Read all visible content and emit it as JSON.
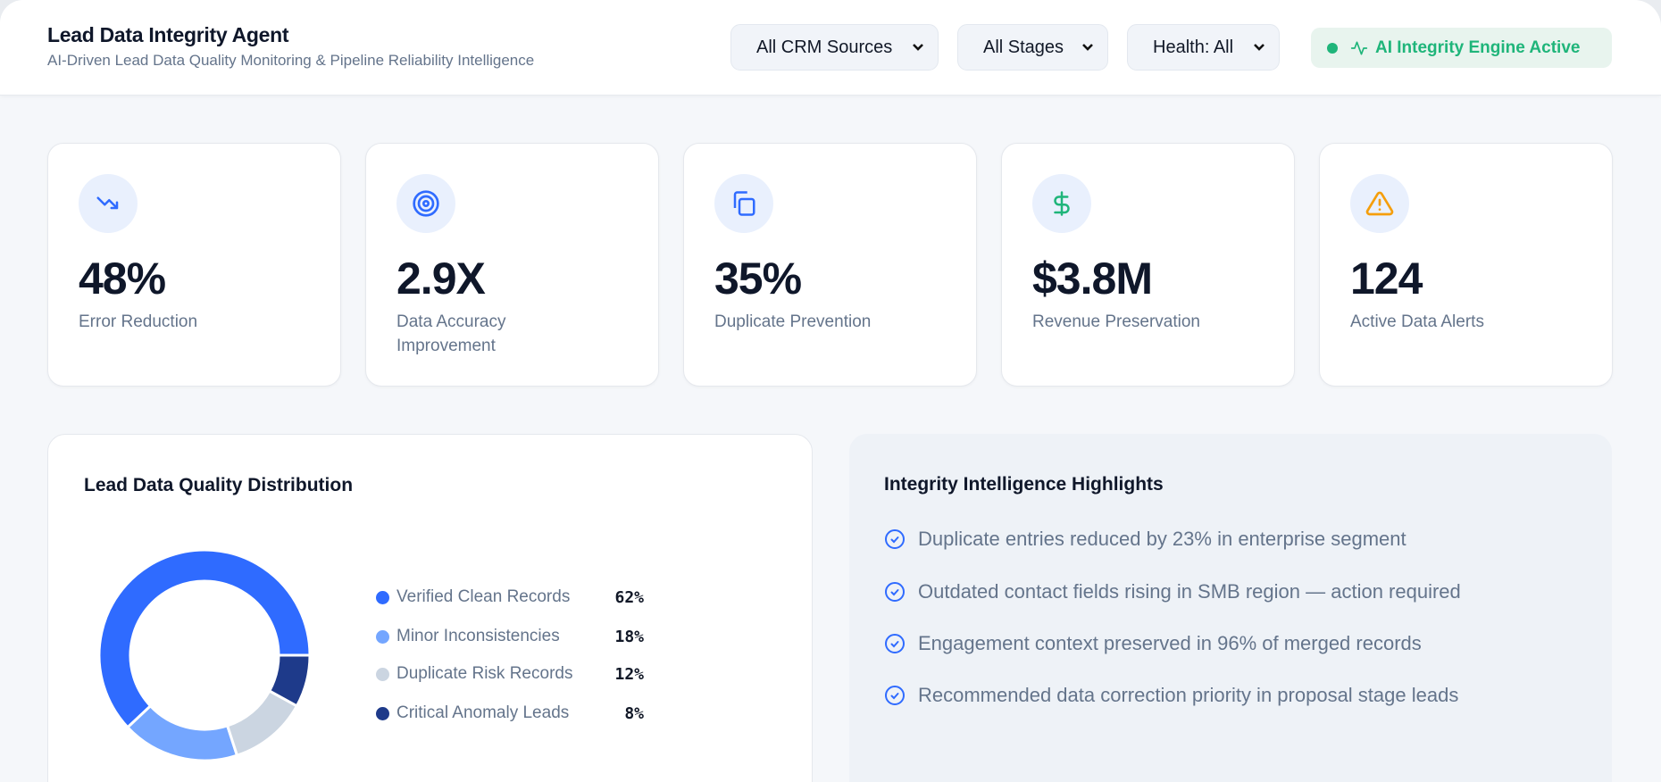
{
  "header": {
    "title": "Lead Data Integrity Agent",
    "subtitle": "AI-Driven Lead Data Quality Monitoring & Pipeline Reliability Intelligence",
    "filters": [
      {
        "value": "All CRM Sources"
      },
      {
        "value": "All Stages"
      },
      {
        "value": "Health: All"
      }
    ],
    "status_badge": {
      "label": "AI Integrity Engine Active",
      "color": "#1fb57a",
      "icon": "activity-icon"
    }
  },
  "kpis": [
    {
      "value": "48%",
      "label": "Error Reduction",
      "icon": "trending-down-icon",
      "icon_color": "#2f6bff"
    },
    {
      "value": "2.9X",
      "label": "Data Accuracy Improvement",
      "icon": "target-icon",
      "icon_color": "#2f6bff"
    },
    {
      "value": "35%",
      "label": "Duplicate Prevention",
      "icon": "copy-icon",
      "icon_color": "#2f6bff"
    },
    {
      "value": "$3.8M",
      "label": "Revenue Preservation",
      "icon": "dollar-icon",
      "icon_color": "#1fb57a"
    },
    {
      "value": "124",
      "label": "Active Data Alerts",
      "icon": "alert-triangle-icon",
      "icon_color": "#f59e0b"
    }
  ],
  "distribution": {
    "title": "Lead Data Quality Distribution",
    "legend": [
      {
        "label": "Verified Clean Records",
        "pct": "62%"
      },
      {
        "label": "Minor Inconsistencies",
        "pct": "18%"
      },
      {
        "label": "Duplicate Risk Records",
        "pct": "12%"
      },
      {
        "label": "Critical Anomaly Leads",
        "pct": "8%"
      }
    ]
  },
  "chart_data": {
    "type": "pie",
    "variant": "doughnut",
    "categories": [
      "Verified Clean Records",
      "Minor Inconsistencies",
      "Duplicate Risk Records",
      "Critical Anomaly Leads"
    ],
    "values": [
      62,
      18,
      12,
      8
    ],
    "colors": [
      "#2f6bff",
      "#74a6ff",
      "#cbd5e1",
      "#1e3a8a"
    ],
    "legend": "right"
  },
  "highlights": {
    "title": "Integrity Intelligence Highlights",
    "items": [
      "Duplicate entries reduced by 23% in enterprise segment",
      "Outdated contact fields rising in SMB region — action required",
      "Engagement context preserved in 96% of merged records",
      "Recommended data correction priority in proposal stage leads"
    ]
  }
}
